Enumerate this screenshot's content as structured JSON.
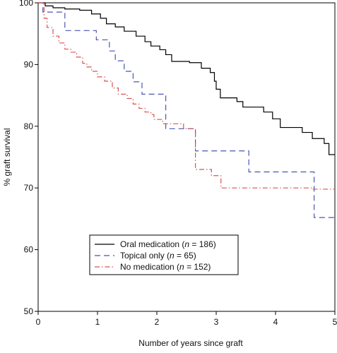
{
  "chart_data": {
    "type": "line",
    "subtype": "kaplan-meier-step",
    "title": "",
    "xlabel": "Number of years since graft",
    "ylabel": "% graft survival",
    "xlim": [
      0,
      5
    ],
    "ylim": [
      50,
      100
    ],
    "xticks": [
      0,
      1,
      2,
      3,
      4,
      5
    ],
    "yticks": [
      50,
      60,
      70,
      80,
      90,
      100
    ],
    "grid": false,
    "legend": {
      "placement": "lower-center",
      "entries": [
        {
          "prefix": "Oral medication (",
          "italic": "n",
          "suffix": " = 186)"
        },
        {
          "prefix": "Topical only (",
          "italic": "n",
          "suffix": " = 65)"
        },
        {
          "prefix": "No medication (",
          "italic": "n",
          "suffix": " = 152)"
        }
      ]
    },
    "series": [
      {
        "color": "#000000",
        "dash": "solid",
        "points": [
          [
            0,
            100
          ],
          [
            0.12,
            99.5
          ],
          [
            0.25,
            99.2
          ],
          [
            0.45,
            99.0
          ],
          [
            0.7,
            98.8
          ],
          [
            0.9,
            98.2
          ],
          [
            1.05,
            97.5
          ],
          [
            1.15,
            96.6
          ],
          [
            1.3,
            96.1
          ],
          [
            1.45,
            95.4
          ],
          [
            1.65,
            94.6
          ],
          [
            1.8,
            93.7
          ],
          [
            1.9,
            93.0
          ],
          [
            2.05,
            92.4
          ],
          [
            2.15,
            91.6
          ],
          [
            2.25,
            90.5
          ],
          [
            2.55,
            90.3
          ],
          [
            2.75,
            89.4
          ],
          [
            2.9,
            88.7
          ],
          [
            2.97,
            87.3
          ],
          [
            3.0,
            86.0
          ],
          [
            3.07,
            84.6
          ],
          [
            3.35,
            84.0
          ],
          [
            3.45,
            83.1
          ],
          [
            3.8,
            82.3
          ],
          [
            3.95,
            81.2
          ],
          [
            4.08,
            79.8
          ],
          [
            4.45,
            79.0
          ],
          [
            4.62,
            78.0
          ],
          [
            4.82,
            77.2
          ],
          [
            4.9,
            75.4
          ],
          [
            5.0,
            75.4
          ]
        ]
      },
      {
        "color": "#4a55b0",
        "dash": "dashed",
        "points": [
          [
            0,
            100
          ],
          [
            0.08,
            98.5
          ],
          [
            0.45,
            95.5
          ],
          [
            0.98,
            94.0
          ],
          [
            1.2,
            92.2
          ],
          [
            1.3,
            90.6
          ],
          [
            1.45,
            88.9
          ],
          [
            1.6,
            87.2
          ],
          [
            1.75,
            85.2
          ],
          [
            2.15,
            79.6
          ],
          [
            2.65,
            76.0
          ],
          [
            3.55,
            72.6
          ],
          [
            4.65,
            65.2
          ],
          [
            5.0,
            65.2
          ]
        ]
      },
      {
        "color": "#d9534f",
        "dash": "dashdot",
        "points": [
          [
            0,
            100
          ],
          [
            0.1,
            97.5
          ],
          [
            0.15,
            96.0
          ],
          [
            0.25,
            94.6
          ],
          [
            0.35,
            93.5
          ],
          [
            0.45,
            92.5
          ],
          [
            0.55,
            92.0
          ],
          [
            0.65,
            91.2
          ],
          [
            0.75,
            90.2
          ],
          [
            0.82,
            89.6
          ],
          [
            0.9,
            88.9
          ],
          [
            1.0,
            88.0
          ],
          [
            1.12,
            87.3
          ],
          [
            1.25,
            86.2
          ],
          [
            1.35,
            85.2
          ],
          [
            1.5,
            84.5
          ],
          [
            1.6,
            83.6
          ],
          [
            1.7,
            82.9
          ],
          [
            1.8,
            82.3
          ],
          [
            1.9,
            81.9
          ],
          [
            1.95,
            81.1
          ],
          [
            2.1,
            80.4
          ],
          [
            2.45,
            79.6
          ],
          [
            2.65,
            73.0
          ],
          [
            2.92,
            72.0
          ],
          [
            3.08,
            70.0
          ],
          [
            4.62,
            69.8
          ],
          [
            5.0,
            69.8
          ]
        ]
      }
    ]
  }
}
